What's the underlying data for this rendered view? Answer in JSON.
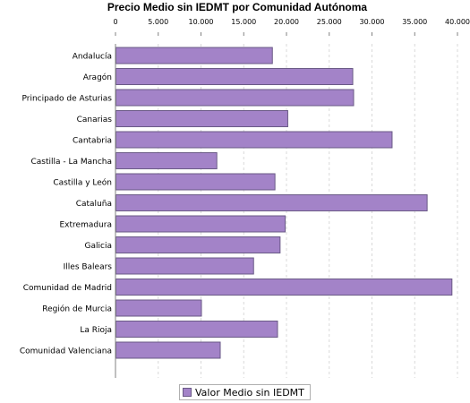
{
  "chart_data": {
    "type": "bar",
    "orientation": "horizontal",
    "title": "Precio Medio sin IEDMT por Comunidad Autónoma",
    "xlabel": "",
    "ylabel": "",
    "xlim": [
      0,
      40000
    ],
    "x_ticks": [
      "0",
      "5.000",
      "10.000",
      "15.000",
      "20.000",
      "25.000",
      "30.000",
      "35.000",
      "40.000"
    ],
    "x_tick_values": [
      0,
      5000,
      10000,
      15000,
      20000,
      25000,
      30000,
      35000,
      40000
    ],
    "x_axis_position": "top",
    "grid": true,
    "legend_placement": "bottom-center",
    "categories": [
      "Andalucía",
      "Aragón",
      "Principado de Asturias",
      "Canarias",
      "Cantabria",
      "Castilla - La Mancha",
      "Castilla y León",
      "Cataluña",
      "Extremadura",
      "Galicia",
      "Illes Balears",
      "Comunidad de Madrid",
      "Región de Murcia",
      "La Rioja",
      "Comunidad Valenciana"
    ],
    "series": [
      {
        "name": "Valor Medio sin IEDMT",
        "values": [
          18300,
          27700,
          27800,
          20100,
          32300,
          11800,
          18600,
          36400,
          19800,
          19200,
          16100,
          39300,
          10000,
          18900,
          12200
        ]
      }
    ],
    "colors": {
      "bar_fill": "#a383c8",
      "bar_stroke": "#6a5a86",
      "grid": "#d9d9d9",
      "axis": "#808080"
    }
  }
}
